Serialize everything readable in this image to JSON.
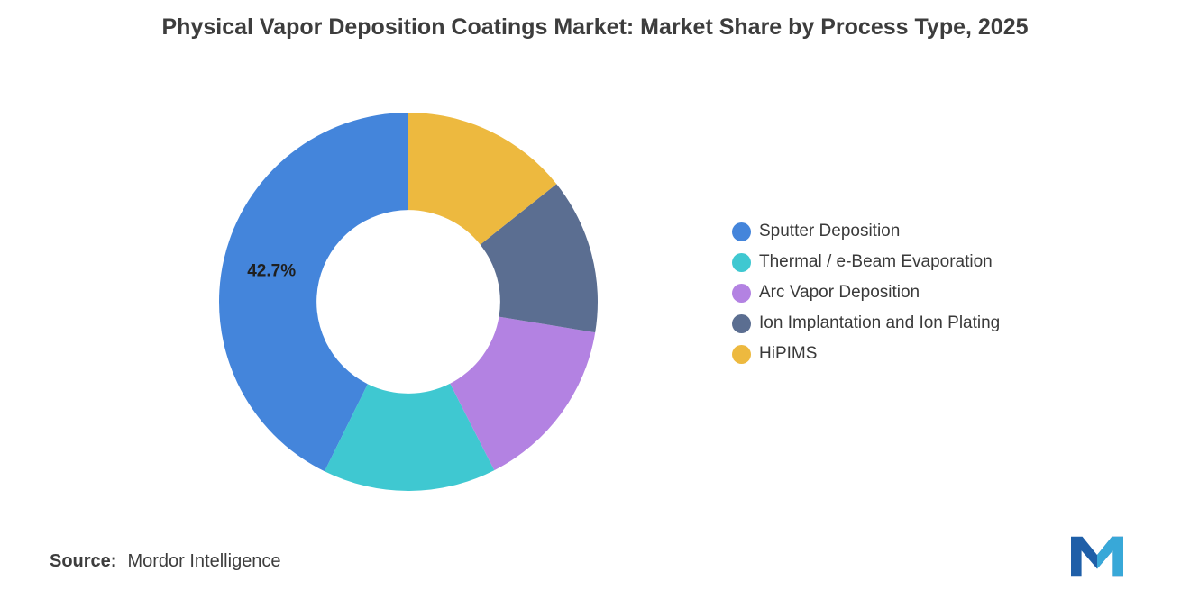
{
  "title": "Physical Vapor Deposition Coatings Market: Market Share by Process Type, 2025",
  "chart_data": {
    "type": "pie",
    "subtype": "donut",
    "title": "Physical Vapor Deposition Coatings Market: Market Share by Process Type, 2025",
    "inner_radius_ratio": 0.485,
    "start_angle_deg": -90,
    "direction": "counterclockwise",
    "legend_position": "right",
    "grid": false,
    "slices": [
      {
        "label": "Sputter Deposition",
        "value": 42.7,
        "color": "#4485DB",
        "data_label": "42.7%"
      },
      {
        "label": "Thermal / e-Beam Evaporation",
        "value": 14.8,
        "color": "#3FC8D1"
      },
      {
        "label": "Arc Vapor Deposition",
        "value": 14.9,
        "color": "#B382E2"
      },
      {
        "label": "Ion Implantation and Ion Plating",
        "value": 13.3,
        "color": "#5B6E91"
      },
      {
        "label": "HiPIMS",
        "value": 14.3,
        "color": "#EDB93F"
      }
    ]
  },
  "footer": {
    "source_label": "Source:",
    "source_value": "Mordor Intelligence"
  }
}
